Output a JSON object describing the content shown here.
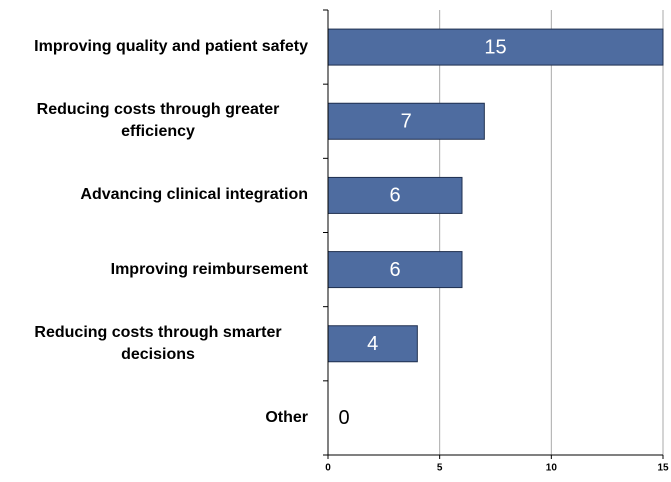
{
  "chart_data": {
    "type": "hbar",
    "categories": [
      "Improving quality and patient safety",
      "Reducing costs through greater efficiency",
      "Advancing clinical integration",
      "Improving reimbursement",
      "Reducing costs through smarter decisions",
      "Other"
    ],
    "values": [
      15,
      7,
      6,
      6,
      4,
      0
    ],
    "color": "#4e6ca0",
    "xlim": [
      0,
      15
    ],
    "xticks": [
      0,
      5,
      10,
      15
    ],
    "grid": true
  }
}
